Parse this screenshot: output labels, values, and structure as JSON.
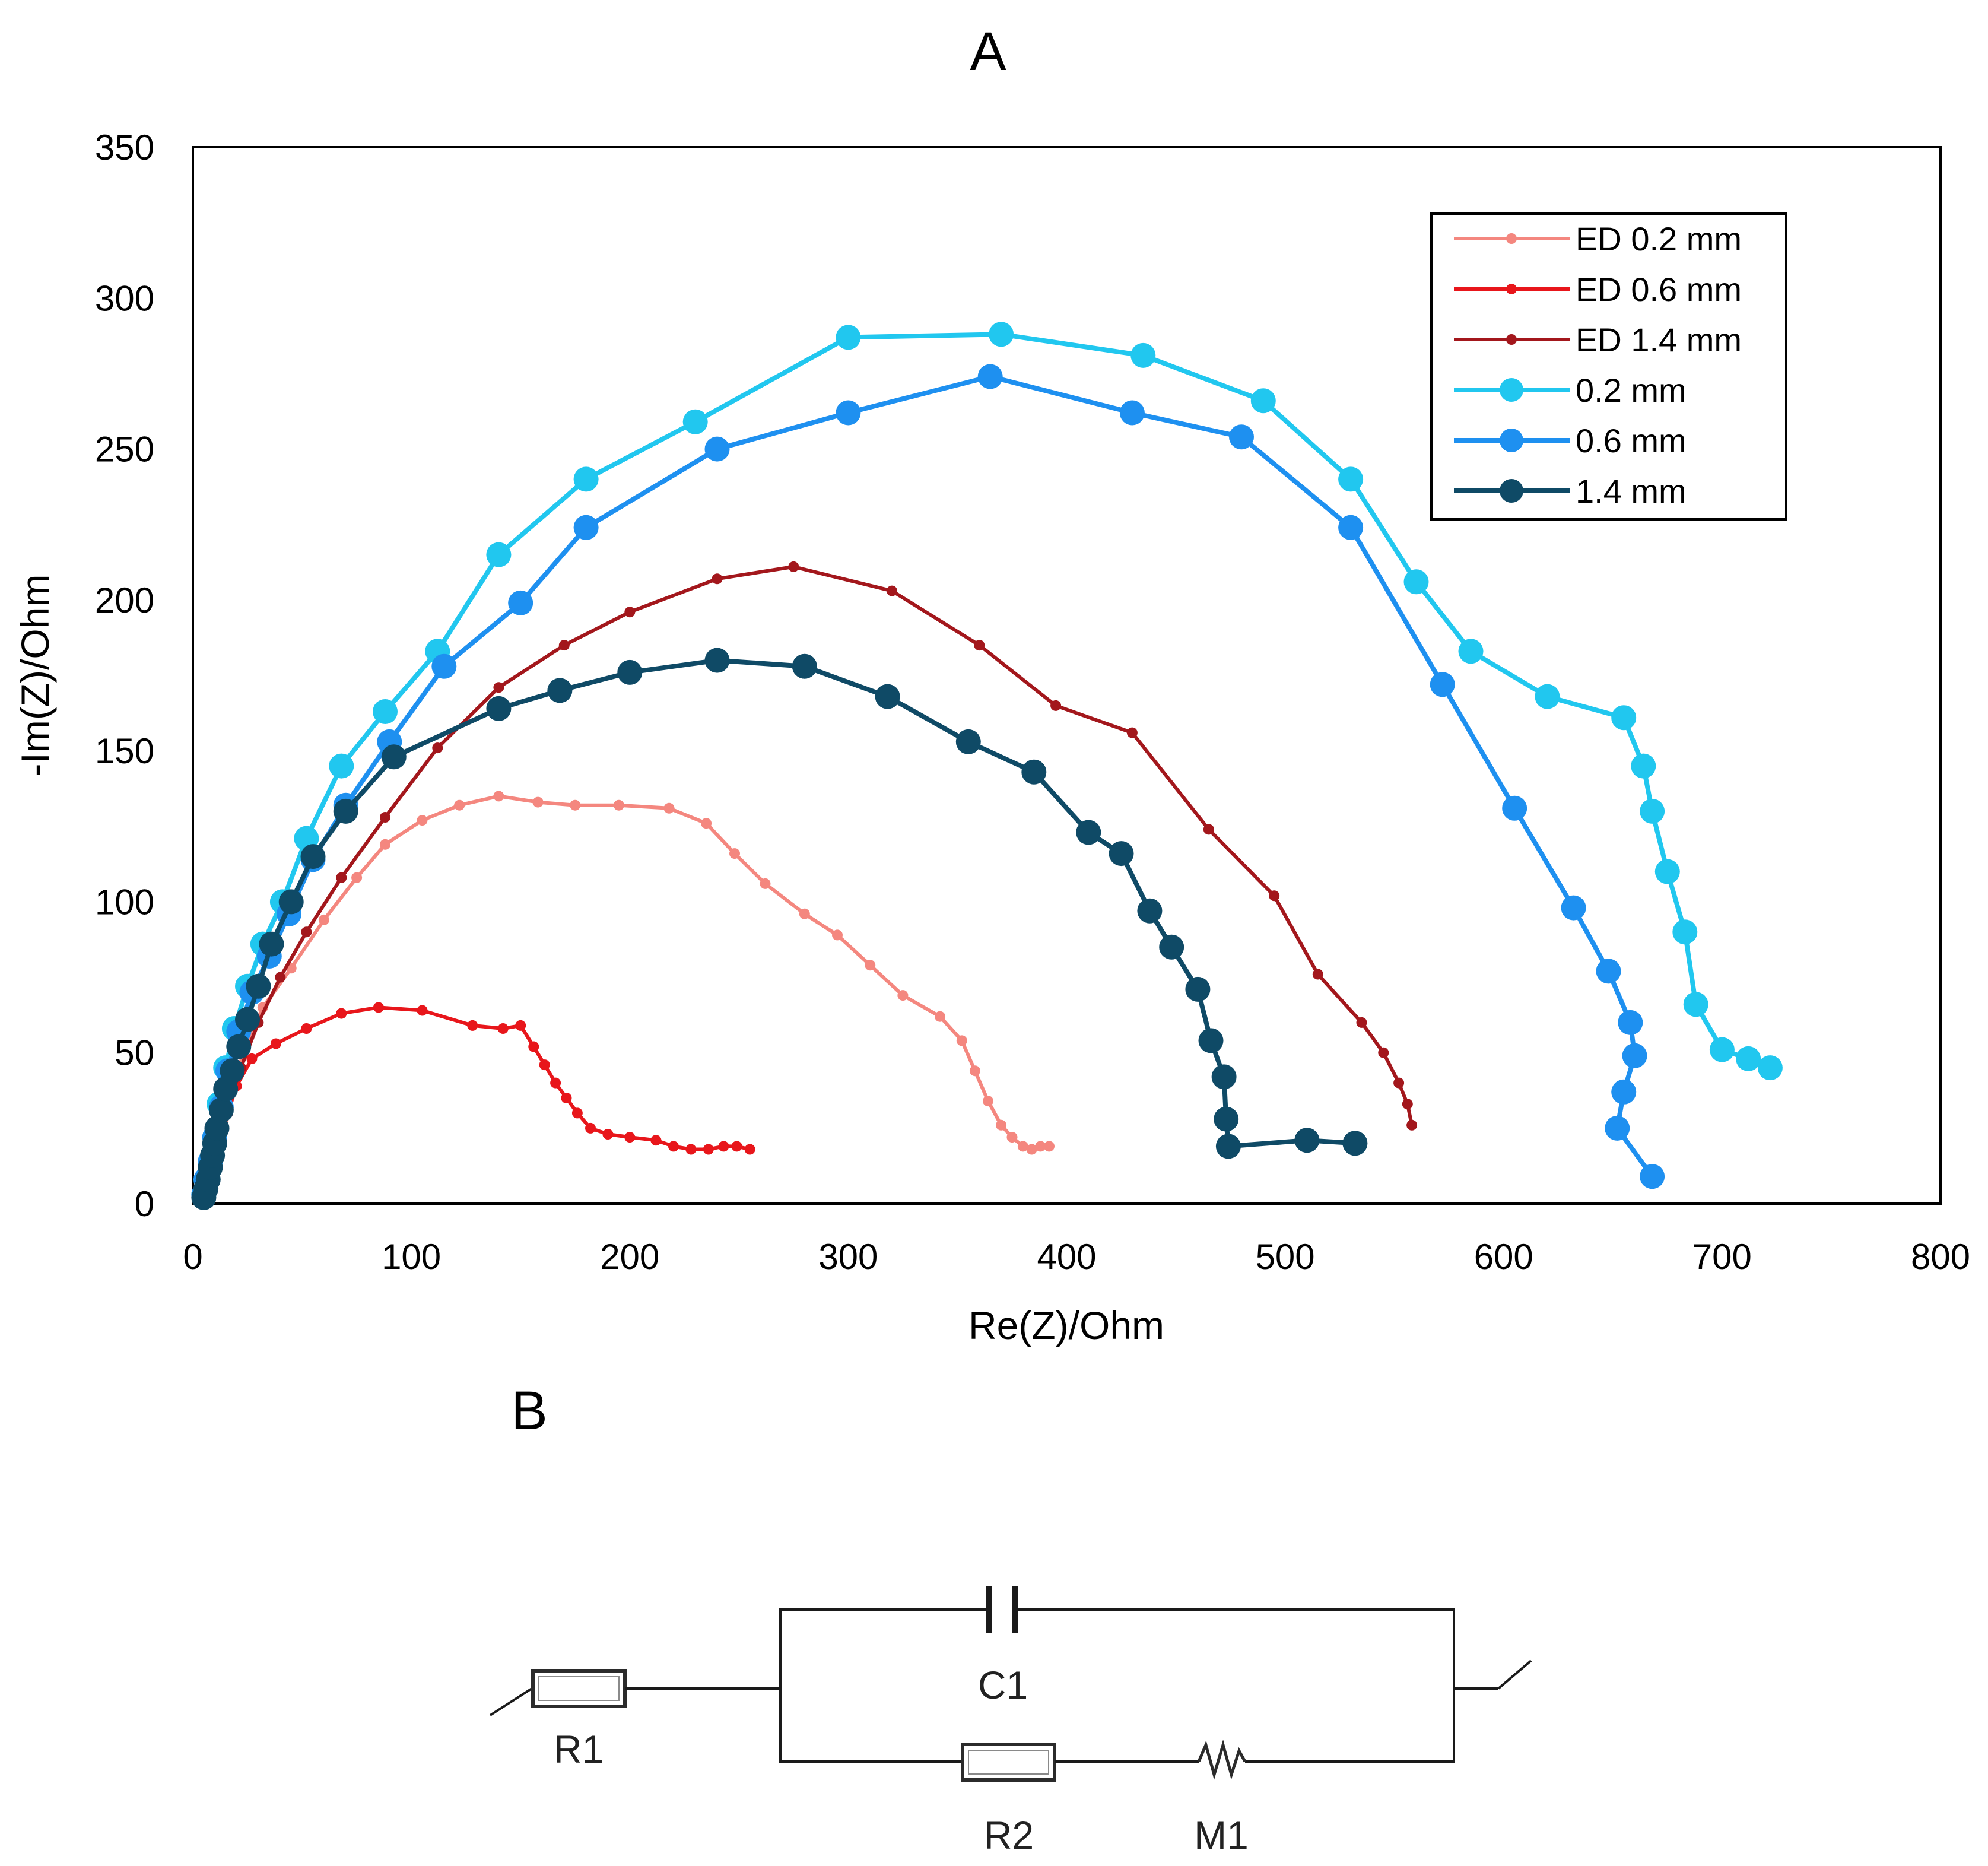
{
  "panels": {
    "a_label": "A",
    "b_label": "B"
  },
  "chart_data": {
    "type": "line",
    "title": "",
    "xlabel": "Re(Z)/Ohm",
    "ylabel": "-Im(Z)/Ohm",
    "xlim": [
      0,
      800
    ],
    "ylim": [
      0,
      350
    ],
    "xticks": [
      0,
      100,
      200,
      300,
      400,
      500,
      600,
      700,
      800
    ],
    "yticks": [
      0,
      50,
      100,
      150,
      200,
      250,
      300,
      350
    ],
    "grid": false,
    "legend_position": "top-right",
    "series": [
      {
        "name": "ED 0.2 mm",
        "color": "#f4877f",
        "marker": "small",
        "points": [
          [
            5,
            2
          ],
          [
            7,
            6
          ],
          [
            9,
            12
          ],
          [
            11,
            18
          ],
          [
            14,
            28
          ],
          [
            18,
            38
          ],
          [
            24,
            52
          ],
          [
            32,
            65
          ],
          [
            45,
            78
          ],
          [
            60,
            94
          ],
          [
            75,
            108
          ],
          [
            88,
            119
          ],
          [
            105,
            127
          ],
          [
            122,
            132
          ],
          [
            140,
            135
          ],
          [
            158,
            133
          ],
          [
            175,
            132
          ],
          [
            195,
            132
          ],
          [
            218,
            131
          ],
          [
            235,
            126
          ],
          [
            248,
            116
          ],
          [
            262,
            106
          ],
          [
            280,
            96
          ],
          [
            295,
            89
          ],
          [
            310,
            79
          ],
          [
            325,
            69
          ],
          [
            342,
            62
          ],
          [
            352,
            54
          ],
          [
            358,
            44
          ],
          [
            364,
            34
          ],
          [
            370,
            26
          ],
          [
            375,
            22
          ],
          [
            380,
            19
          ],
          [
            384,
            18
          ],
          [
            388,
            19
          ],
          [
            392,
            19
          ]
        ]
      },
      {
        "name": "ED 0.6 mm",
        "color": "#e8161b",
        "marker": "small",
        "points": [
          [
            5,
            2
          ],
          [
            7,
            6
          ],
          [
            9,
            12
          ],
          [
            12,
            20
          ],
          [
            16,
            30
          ],
          [
            20,
            39
          ],
          [
            27,
            48
          ],
          [
            38,
            53
          ],
          [
            52,
            58
          ],
          [
            68,
            63
          ],
          [
            85,
            65
          ],
          [
            105,
            64
          ],
          [
            128,
            59
          ],
          [
            142,
            58
          ],
          [
            150,
            59
          ],
          [
            156,
            52
          ],
          [
            161,
            46
          ],
          [
            166,
            40
          ],
          [
            171,
            35
          ],
          [
            176,
            30
          ],
          [
            182,
            25
          ],
          [
            190,
            23
          ],
          [
            200,
            22
          ],
          [
            212,
            21
          ],
          [
            220,
            19
          ],
          [
            228,
            18
          ],
          [
            236,
            18
          ],
          [
            243,
            19
          ],
          [
            249,
            19
          ],
          [
            255,
            18
          ]
        ]
      },
      {
        "name": "ED 1.4 mm",
        "color": "#a3171c",
        "marker": "small",
        "points": [
          [
            5,
            2
          ],
          [
            7,
            6
          ],
          [
            9,
            12
          ],
          [
            12,
            20
          ],
          [
            16,
            32
          ],
          [
            22,
            45
          ],
          [
            30,
            60
          ],
          [
            40,
            75
          ],
          [
            52,
            90
          ],
          [
            68,
            108
          ],
          [
            88,
            128
          ],
          [
            112,
            151
          ],
          [
            140,
            171
          ],
          [
            170,
            185
          ],
          [
            200,
            196
          ],
          [
            240,
            207
          ],
          [
            275,
            211
          ],
          [
            320,
            203
          ],
          [
            360,
            185
          ],
          [
            395,
            165
          ],
          [
            430,
            156
          ],
          [
            465,
            124
          ],
          [
            495,
            102
          ],
          [
            515,
            76
          ],
          [
            535,
            60
          ],
          [
            545,
            50
          ],
          [
            552,
            40
          ],
          [
            556,
            33
          ],
          [
            558,
            26
          ]
        ]
      },
      {
        "name": "0.2 mm",
        "color": "#21c7ef",
        "marker": "large",
        "points": [
          [
            5,
            3
          ],
          [
            6,
            8
          ],
          [
            8,
            14
          ],
          [
            10,
            22
          ],
          [
            12,
            33
          ],
          [
            15,
            45
          ],
          [
            19,
            58
          ],
          [
            25,
            72
          ],
          [
            32,
            86
          ],
          [
            41,
            100
          ],
          [
            52,
            121
          ],
          [
            68,
            145
          ],
          [
            88,
            163
          ],
          [
            112,
            183
          ],
          [
            140,
            215
          ],
          [
            180,
            240
          ],
          [
            230,
            259
          ],
          [
            300,
            287
          ],
          [
            370,
            288
          ],
          [
            435,
            281
          ],
          [
            490,
            266
          ],
          [
            530,
            240
          ],
          [
            560,
            206
          ],
          [
            585,
            183
          ],
          [
            620,
            168
          ],
          [
            655,
            161
          ],
          [
            664,
            145
          ],
          [
            668,
            130
          ],
          [
            675,
            110
          ],
          [
            683,
            90
          ],
          [
            688,
            66
          ],
          [
            700,
            51
          ],
          [
            712,
            48
          ],
          [
            722,
            45
          ]
        ]
      },
      {
        "name": "0.6 mm",
        "color": "#1e90f0",
        "marker": "large",
        "points": [
          [
            5,
            3
          ],
          [
            6,
            8
          ],
          [
            8,
            14
          ],
          [
            10,
            22
          ],
          [
            13,
            32
          ],
          [
            16,
            44
          ],
          [
            21,
            57
          ],
          [
            27,
            70
          ],
          [
            35,
            82
          ],
          [
            44,
            96
          ],
          [
            55,
            114
          ],
          [
            70,
            132
          ],
          [
            90,
            153
          ],
          [
            115,
            178
          ],
          [
            150,
            199
          ],
          [
            180,
            224
          ],
          [
            240,
            250
          ],
          [
            300,
            262
          ],
          [
            365,
            274
          ],
          [
            430,
            262
          ],
          [
            480,
            254
          ],
          [
            530,
            224
          ],
          [
            572,
            172
          ],
          [
            605,
            131
          ],
          [
            632,
            98
          ],
          [
            648,
            77
          ],
          [
            658,
            60
          ],
          [
            660,
            49
          ],
          [
            655,
            37
          ],
          [
            652,
            25
          ],
          [
            668,
            9
          ]
        ]
      },
      {
        "name": "1.4 mm",
        "color": "#0f4a66",
        "marker": "large",
        "points": [
          [
            5,
            2
          ],
          [
            6,
            5
          ],
          [
            7,
            8
          ],
          [
            8,
            12
          ],
          [
            9,
            16
          ],
          [
            10,
            20
          ],
          [
            11,
            25
          ],
          [
            13,
            31
          ],
          [
            15,
            38
          ],
          [
            18,
            44
          ],
          [
            21,
            52
          ],
          [
            25,
            61
          ],
          [
            30,
            72
          ],
          [
            36,
            86
          ],
          [
            45,
            100
          ],
          [
            55,
            115
          ],
          [
            70,
            130
          ],
          [
            92,
            148
          ],
          [
            140,
            164
          ],
          [
            168,
            170
          ],
          [
            200,
            176
          ],
          [
            240,
            180
          ],
          [
            280,
            178
          ],
          [
            318,
            168
          ],
          [
            355,
            153
          ],
          [
            385,
            143
          ],
          [
            410,
            123
          ],
          [
            425,
            116
          ],
          [
            438,
            97
          ],
          [
            448,
            85
          ],
          [
            460,
            71
          ],
          [
            466,
            54
          ],
          [
            472,
            42
          ],
          [
            473,
            28
          ],
          [
            474,
            19
          ],
          [
            510,
            21
          ],
          [
            532,
            20
          ]
        ]
      }
    ]
  },
  "circuit": {
    "r1_label": "R1",
    "c1_label": "C1",
    "r2_label": "R2",
    "m1_label": "M1"
  }
}
